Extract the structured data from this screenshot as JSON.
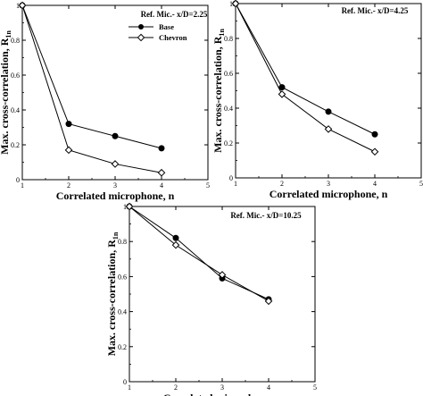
{
  "chart_data": [
    {
      "type": "line",
      "annotation": "Ref. Mic.- x/D=2.25",
      "xlabel": "Correlated microphone, n",
      "ylabel": "Max. cross-correlation, R",
      "ylabel_sub": "1n",
      "xlim": [
        1,
        5
      ],
      "ylim": [
        0,
        1
      ],
      "xticks": [
        "1",
        "2",
        "3",
        "4",
        "5"
      ],
      "yticks": [
        "0",
        "0.2",
        "0.4",
        "0.6",
        "0.8",
        "1"
      ],
      "legend": "top-right",
      "series": [
        {
          "name": "Base",
          "marker": "filled-circle",
          "x": [
            1,
            2,
            3,
            4
          ],
          "y": [
            1.0,
            0.32,
            0.25,
            0.18
          ]
        },
        {
          "name": "Chevron",
          "marker": "open-diamond",
          "x": [
            1,
            2,
            3,
            4
          ],
          "y": [
            1.0,
            0.17,
            0.09,
            0.04
          ]
        }
      ]
    },
    {
      "type": "line",
      "annotation": "Ref. Mic.- x/D=4.25",
      "xlabel": "Correlated microphone, n",
      "ylabel": "Max. cross-correlation, R",
      "ylabel_sub": "1n",
      "xlim": [
        1,
        5
      ],
      "ylim": [
        0,
        1
      ],
      "xticks": [
        "1",
        "2",
        "3",
        "4",
        "5"
      ],
      "yticks": [
        "0",
        "0.2",
        "0.4",
        "0.6",
        "0.8",
        "1"
      ],
      "series": [
        {
          "marker": "filled-circle",
          "x": [
            1,
            2,
            3,
            4
          ],
          "y": [
            1.0,
            0.52,
            0.38,
            0.25
          ]
        },
        {
          "marker": "open-diamond",
          "x": [
            1,
            2,
            3,
            4
          ],
          "y": [
            1.0,
            0.48,
            0.28,
            0.15
          ]
        }
      ]
    },
    {
      "type": "line",
      "annotation": "Ref. Mic.- x/D=10.25",
      "xlabel": "Correlated microphone, n",
      "ylabel": "Max. cross-correlation, R",
      "ylabel_sub": "1n",
      "xlim": [
        1,
        5
      ],
      "ylim": [
        0,
        1
      ],
      "xticks": [
        "1",
        "2",
        "3",
        "4",
        "5"
      ],
      "yticks": [
        "0",
        "0.2",
        "0.4",
        "0.6",
        "0.8",
        "1"
      ],
      "series": [
        {
          "marker": "filled-circle",
          "x": [
            1,
            2,
            3,
            4
          ],
          "y": [
            1.0,
            0.82,
            0.59,
            0.47
          ]
        },
        {
          "marker": "open-diamond",
          "x": [
            1,
            2,
            3,
            4
          ],
          "y": [
            1.0,
            0.78,
            0.61,
            0.46
          ]
        }
      ]
    }
  ]
}
